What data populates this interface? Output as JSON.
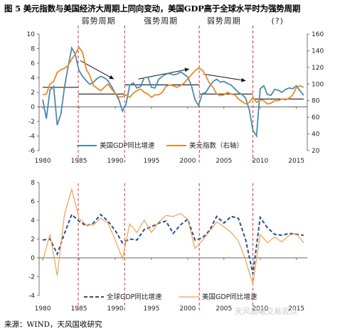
{
  "title": "图 5 美元指数与美国经济大周期上同向变动，美国GDP高于全球水平时为强势周期",
  "source": "来源：WIND，天风国收研究",
  "watermark": "天风晨曦交易观点",
  "colors": {
    "series_a": "#4a8ab0",
    "series_b": "#e8892a",
    "series_c": "#2b4f8c",
    "series_d": "#f0a050",
    "divider": "#e03030"
  },
  "chart_data": [
    {
      "type": "line",
      "period_labels": [
        "弱势周期",
        "强势周期",
        "弱势周期",
        "(?)"
      ],
      "dividers_x": [
        1984.9,
        1991.3,
        2001.6,
        2009.0
      ],
      "x_ticks": [
        "1980",
        "1985",
        "1990",
        "1995",
        "2000",
        "2005",
        "2010",
        "2015"
      ],
      "xlim": [
        1979.5,
        2016.5
      ],
      "ylim_left": [
        -6,
        10
      ],
      "ylim_right": [
        20,
        160
      ],
      "yticks_left": [
        "-6",
        "-4",
        "-2",
        "0",
        "2",
        "4",
        "6",
        "8",
        "10"
      ],
      "yticks_right": [
        "20",
        "40",
        "60",
        "80",
        "100",
        "120",
        "140",
        "160"
      ],
      "ref_segments": [
        {
          "x": [
            1980,
            1984.9
          ],
          "y_right": 96
        },
        {
          "x": [
            1984.9,
            1991.3
          ],
          "y_right": 88
        },
        {
          "x": [
            1991.3,
            2001.6
          ],
          "y_right": 99
        },
        {
          "x": [
            2001.6,
            2009.0
          ],
          "y_right": 88
        },
        {
          "x": [
            2009.0,
            2016.0
          ],
          "y_right": 82
        }
      ],
      "trend_arrows": [
        {
          "from": [
            1985.2,
            128
          ],
          "to": [
            1989.8,
            106
          ]
        },
        {
          "from": [
            1993.2,
            106
          ],
          "to": [
            2000.2,
            118
          ]
        },
        {
          "from": [
            2002.2,
            112
          ],
          "to": [
            2008.0,
            104
          ]
        }
      ],
      "series": [
        {
          "name": "美国GDP同比增速",
          "axis": "left",
          "x": [
            1980,
            1980.5,
            1981,
            1981.5,
            1982,
            1982.5,
            1983,
            1983.5,
            1984,
            1984.5,
            1985,
            1985.5,
            1986,
            1986.5,
            1987,
            1987.5,
            1988,
            1988.5,
            1989,
            1989.5,
            1990,
            1990.5,
            1991,
            1991.5,
            1992,
            1992.5,
            1993,
            1993.5,
            1994,
            1994.5,
            1995,
            1995.5,
            1996,
            1996.5,
            1997,
            1997.5,
            1998,
            1998.5,
            1999,
            1999.5,
            2000,
            2000.5,
            2001,
            2001.5,
            2002,
            2002.5,
            2003,
            2003.5,
            2004,
            2004.5,
            2005,
            2005.5,
            2006,
            2006.5,
            2007,
            2007.5,
            2008,
            2008.5,
            2009,
            2009.5,
            2010,
            2010.5,
            2011,
            2011.5,
            2012,
            2012.5,
            2013,
            2013.5,
            2014,
            2014.5,
            2015,
            2015.5,
            2016
          ],
          "values": [
            1.0,
            -1.6,
            2.3,
            2.8,
            -2.5,
            -1.0,
            2.7,
            5.5,
            8.1,
            7.2,
            5.0,
            4.2,
            3.6,
            3.1,
            3.4,
            3.9,
            4.2,
            4.0,
            3.6,
            2.8,
            1.9,
            1.0,
            -0.6,
            0.4,
            3.0,
            3.3,
            2.6,
            2.8,
            4.0,
            4.1,
            2.7,
            2.6,
            3.8,
            4.2,
            4.5,
            4.6,
            4.4,
            4.5,
            4.8,
            4.5,
            4.1,
            3.0,
            1.0,
            0.2,
            1.8,
            2.0,
            2.8,
            3.5,
            3.8,
            3.4,
            3.5,
            3.2,
            3.0,
            2.5,
            2.0,
            1.7,
            1.2,
            -0.4,
            -3.2,
            -4.0,
            2.5,
            2.9,
            1.7,
            1.6,
            2.4,
            2.3,
            2.0,
            2.4,
            2.6,
            2.5,
            2.9,
            2.2,
            1.6
          ]
        },
        {
          "name": "美元指数（右轴）",
          "axis": "right",
          "x": [
            1980,
            1980.5,
            1981,
            1981.5,
            1982,
            1982.5,
            1983,
            1983.5,
            1984,
            1984.5,
            1985,
            1985.5,
            1986,
            1986.5,
            1987,
            1987.5,
            1988,
            1988.5,
            1989,
            1989.5,
            1990,
            1990.5,
            1991,
            1991.5,
            1992,
            1992.5,
            1993,
            1993.5,
            1994,
            1994.5,
            1995,
            1995.5,
            1996,
            1996.5,
            1997,
            1997.5,
            1998,
            1998.5,
            1999,
            1999.5,
            2000,
            2000.5,
            2001,
            2001.5,
            2002,
            2002.5,
            2003,
            2003.5,
            2004,
            2004.5,
            2005,
            2005.5,
            2006,
            2006.5,
            2007,
            2007.5,
            2008,
            2008.5,
            2009,
            2009.5,
            2010,
            2010.5,
            2011,
            2011.5,
            2012,
            2012.5,
            2013,
            2013.5,
            2014,
            2014.5,
            2015,
            2015.5,
            2016
          ],
          "values": [
            87,
            88,
            100,
            103,
            114,
            117,
            119,
            122,
            130,
            136,
            144,
            138,
            118,
            110,
            98,
            95,
            92,
            96,
            100,
            94,
            89,
            84,
            85,
            87,
            84,
            89,
            92,
            94,
            90,
            88,
            84,
            87,
            87,
            90,
            97,
            99,
            98,
            96,
            98,
            101,
            106,
            111,
            116,
            119,
            117,
            110,
            101,
            96,
            88,
            86,
            87,
            90,
            88,
            87,
            82,
            79,
            76,
            78,
            84,
            78,
            81,
            80,
            76,
            77,
            80,
            80,
            82,
            81,
            83,
            87,
            96,
            98,
            96
          ]
        }
      ]
    },
    {
      "type": "line",
      "dividers_x": [
        1984.9,
        1991.3,
        2001.6,
        2009.0
      ],
      "x_ticks": [
        "1980",
        "1985",
        "1990",
        "1995",
        "2000",
        "2005",
        "2010",
        "2015"
      ],
      "xlim": [
        1979.5,
        2016.5
      ],
      "ylim": [
        -4,
        8
      ],
      "yticks": [
        "-4",
        "-2",
        "0",
        "2",
        "4",
        "6",
        "8"
      ],
      "series": [
        {
          "name": "全球GDP同比增速",
          "x": [
            1980,
            1981,
            1982,
            1983,
            1984,
            1985,
            1986,
            1987,
            1988,
            1989,
            1990,
            1991,
            1992,
            1993,
            1994,
            1995,
            1996,
            1997,
            1998,
            1999,
            2000,
            2001,
            2002,
            2003,
            2004,
            2005,
            2006,
            2007,
            2008,
            2009,
            2010,
            2011,
            2012,
            2013,
            2014,
            2015,
            2016
          ],
          "values": [
            1.9,
            2.0,
            0.4,
            2.6,
            4.6,
            3.9,
            3.4,
            3.7,
            4.6,
            3.9,
            2.9,
            1.6,
            2.0,
            1.9,
            3.0,
            3.3,
            3.7,
            3.9,
            2.6,
            3.5,
            4.1,
            1.9,
            2.1,
            2.9,
            4.4,
            3.7,
            4.4,
            4.2,
            1.9,
            -1.7,
            4.3,
            3.2,
            2.5,
            2.4,
            2.6,
            2.5,
            2.4
          ]
        },
        {
          "name": "美国GDP同比增速",
          "x": [
            1980,
            1981,
            1982,
            1983,
            1984,
            1985,
            1986,
            1987,
            1988,
            1989,
            1990,
            1991,
            1992,
            1993,
            1994,
            1995,
            1996,
            1997,
            1998,
            1999,
            2000,
            2001,
            2002,
            2003,
            2004,
            2005,
            2006,
            2007,
            2008,
            2009,
            2010,
            2011,
            2012,
            2013,
            2014,
            2015,
            2016
          ],
          "values": [
            -0.3,
            2.5,
            -1.9,
            4.6,
            7.3,
            4.2,
            3.5,
            3.5,
            4.2,
            3.7,
            1.9,
            -0.1,
            3.6,
            2.7,
            4.0,
            2.7,
            3.8,
            4.5,
            4.4,
            4.7,
            4.1,
            1.0,
            1.8,
            2.8,
            3.8,
            3.3,
            2.7,
            1.8,
            -0.3,
            -2.8,
            2.5,
            1.6,
            2.2,
            1.7,
            2.4,
            2.6,
            1.6
          ]
        }
      ]
    }
  ]
}
